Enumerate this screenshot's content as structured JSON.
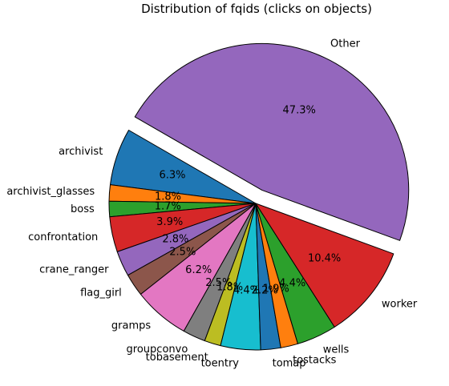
{
  "chart_data": {
    "type": "pie",
    "title": "Distribution of fqids (clicks on objects)",
    "start_angle_deg": 150,
    "direction": "counterclockwise",
    "slices": [
      {
        "label": "archivist",
        "value": 6.3,
        "pct_label": "6.3%",
        "color": "#1f77b4",
        "explode": 0
      },
      {
        "label": "archivist_glasses",
        "value": 1.8,
        "pct_label": "1.8%",
        "color": "#ff7f0e",
        "explode": 0
      },
      {
        "label": "boss",
        "value": 1.7,
        "pct_label": "1.7%",
        "color": "#2ca02c",
        "explode": 0
      },
      {
        "label": "confrontation",
        "value": 3.9,
        "pct_label": "3.9%",
        "color": "#d62728",
        "explode": 0
      },
      {
        "label": "crane_ranger",
        "value": 2.8,
        "pct_label": "2.8%",
        "color": "#9467bd",
        "explode": 0
      },
      {
        "label": "flag_girl",
        "value": 2.5,
        "pct_label": "2.5%",
        "color": "#8c564b",
        "explode": 0
      },
      {
        "label": "gramps",
        "value": 6.2,
        "pct_label": "6.2%",
        "color": "#e377c2",
        "explode": 0
      },
      {
        "label": "groupconvo",
        "value": 2.5,
        "pct_label": "2.5%",
        "color": "#7f7f7f",
        "explode": 0
      },
      {
        "label": "tobasement",
        "value": 1.8,
        "pct_label": "1.8%",
        "color": "#bcbd22",
        "explode": 0
      },
      {
        "label": "toentry",
        "value": 4.4,
        "pct_label": "4.4%",
        "color": "#17becf",
        "explode": 0
      },
      {
        "label": "tomap",
        "value": 2.2,
        "pct_label": "2.2%",
        "color": "#1f77b4",
        "explode": 0
      },
      {
        "label": "tostacks",
        "value": 1.9,
        "pct_label": "1.9%",
        "color": "#ff7f0e",
        "explode": 0
      },
      {
        "label": "wells",
        "value": 4.4,
        "pct_label": "4.4%",
        "color": "#2ca02c",
        "explode": 0
      },
      {
        "label": "worker",
        "value": 10.4,
        "pct_label": "10.4%",
        "color": "#d62728",
        "explode": 0
      },
      {
        "label": "Other",
        "value": 47.3,
        "pct_label": "47.3%",
        "color": "#9467bd",
        "explode": 0.1
      }
    ]
  }
}
